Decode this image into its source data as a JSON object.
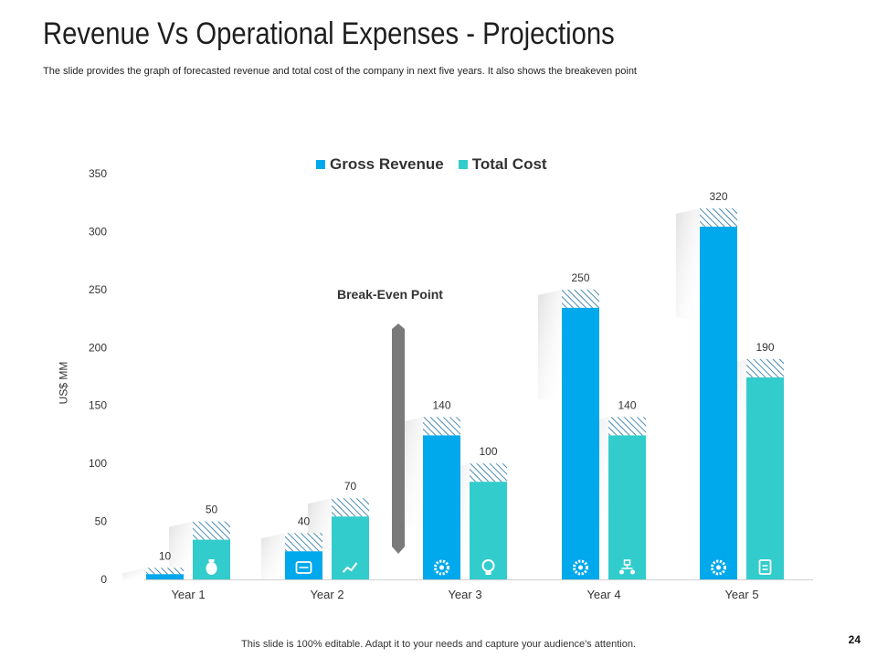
{
  "slide": {
    "title": "Revenue Vs Operational Expenses - Projections",
    "subtitle": "The slide provides  the graph  of forecasted  revenue  and total cost of the company  in next five  years.  It also shows  the breakeven  point",
    "footer": "This slide is 100% editable. Adapt it to your needs and capture your audience's attention.",
    "page_number": "24"
  },
  "annotations": {
    "breakeven_label": "Break-Even Point"
  },
  "chart_data": {
    "type": "bar",
    "categories": [
      "Year 1",
      "Year 2",
      "Year 3",
      "Year 4",
      "Year 5"
    ],
    "series": [
      {
        "name": "Gross Revenue",
        "values": [
          10,
          40,
          140,
          250,
          320
        ],
        "color": "#00A8EC"
      },
      {
        "name": "Total Cost",
        "values": [
          50,
          70,
          100,
          140,
          190
        ],
        "color": "#33CCCC"
      }
    ],
    "ylabel": "US$ MM",
    "ylim": [
      0,
      350
    ],
    "yticks": [
      "0",
      "50",
      "100",
      "150",
      "200",
      "250",
      "300",
      "350"
    ],
    "grid": false,
    "legend_position": "top",
    "icons": [
      "money-bag-icon",
      "cash-register-icon",
      "trend-chart-icon",
      "gear-icon",
      "lightbulb-icon",
      "gear-icon",
      "network-icon",
      "cycle-gear-icon",
      "clipboard-icon"
    ]
  }
}
